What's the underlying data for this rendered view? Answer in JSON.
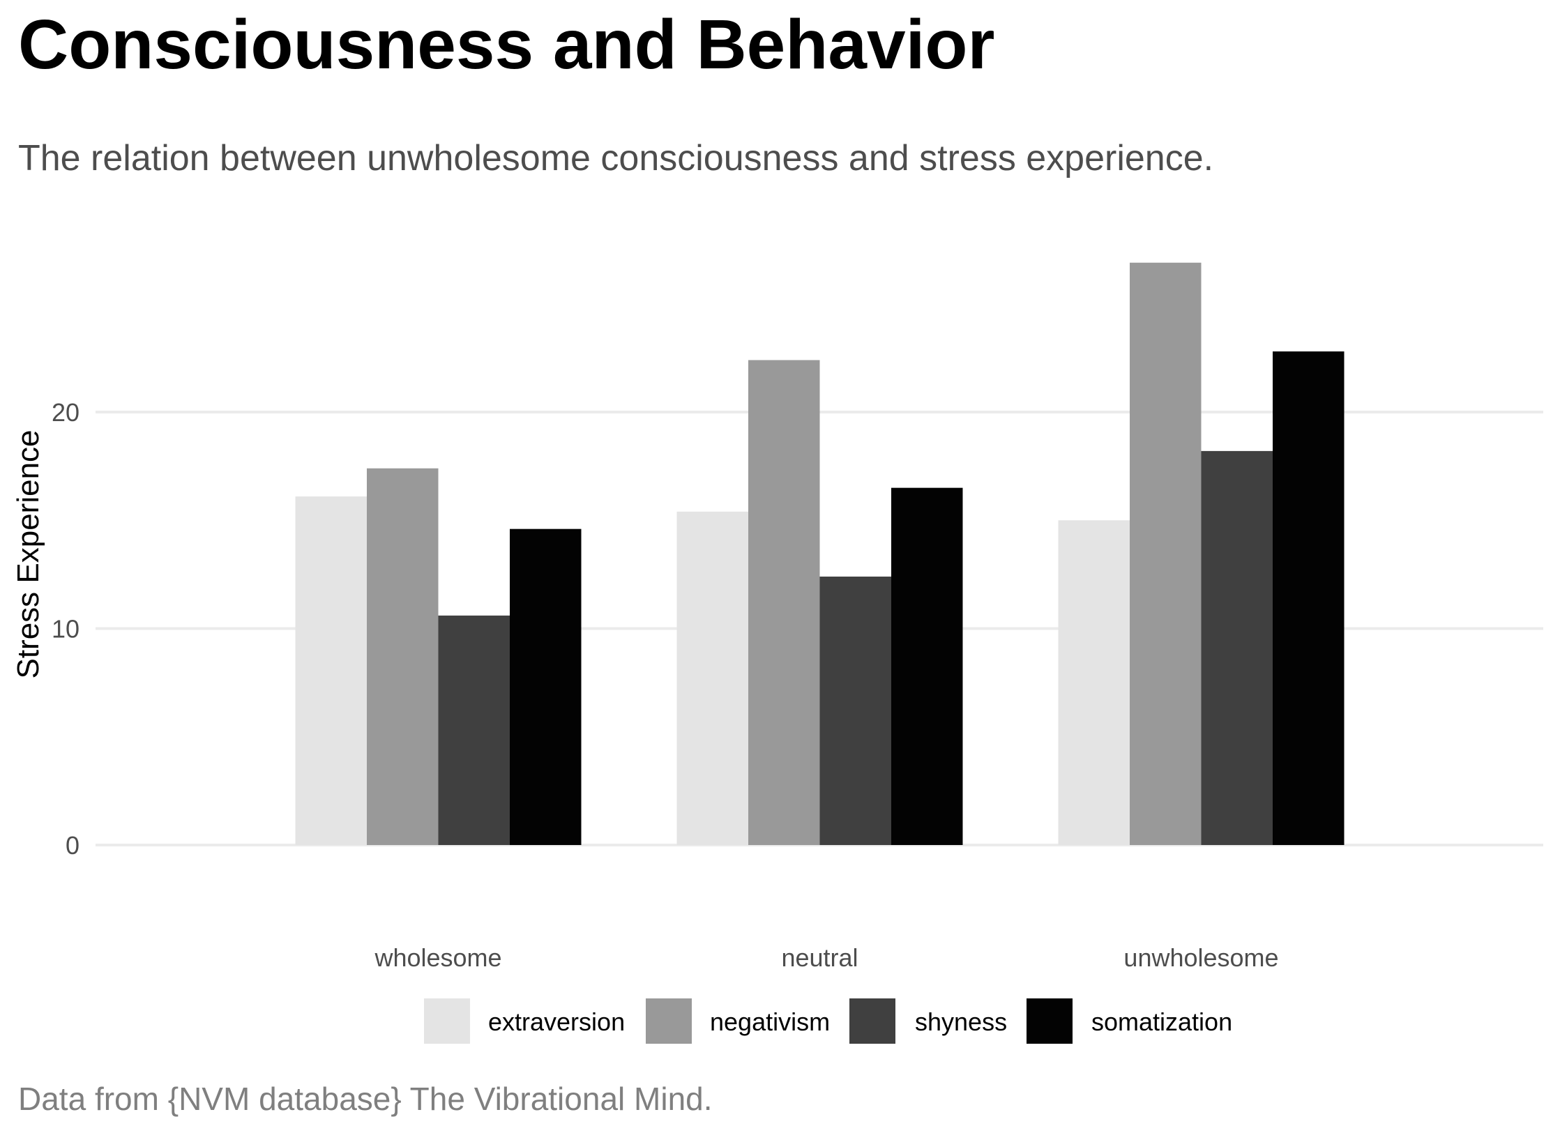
{
  "chart_data": {
    "type": "bar",
    "title": "Consciousness and Behavior",
    "subtitle": "The relation between unwholesome consciousness and stress experience.",
    "caption": "Data from {NVM database} The Vibrational Mind.",
    "xlabel": "",
    "ylabel": "Stress Experience",
    "ylim": [
      0,
      28
    ],
    "yticks": [
      0,
      10,
      20
    ],
    "ytick_labels": [
      "0",
      "10",
      "20"
    ],
    "grid": true,
    "legend_position": "bottom",
    "categories": [
      "wholesome",
      "neutral",
      "unwholesome"
    ],
    "series": [
      {
        "name": "extraversion",
        "color": "#e4e4e4",
        "values": [
          16.1,
          15.4,
          15.0
        ]
      },
      {
        "name": "negativism",
        "color": "#999999",
        "values": [
          17.4,
          22.4,
          26.9
        ]
      },
      {
        "name": "shyness",
        "color": "#404040",
        "values": [
          10.6,
          12.4,
          18.2
        ]
      },
      {
        "name": "somatization",
        "color": "#030303",
        "values": [
          14.6,
          16.5,
          22.8
        ]
      }
    ]
  }
}
